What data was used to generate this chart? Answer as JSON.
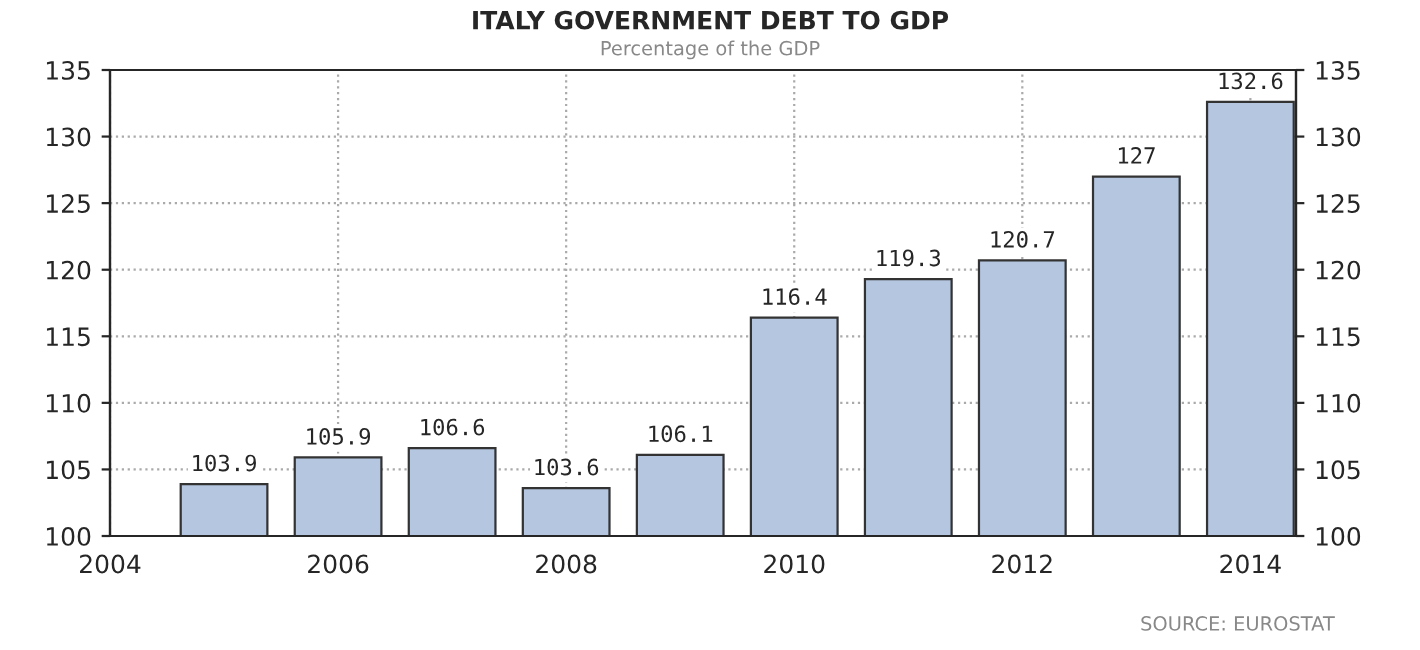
{
  "chart_data": {
    "type": "bar",
    "title": "ITALY GOVERNMENT DEBT TO GDP",
    "subtitle": "Percentage of the GDP",
    "x": [
      2005,
      2006,
      2007,
      2008,
      2009,
      2010,
      2011,
      2012,
      2013,
      2014
    ],
    "series": [
      {
        "color": "#b4c6e0",
        "values": [
          103.9,
          105.9,
          106.6,
          103.6,
          106.1,
          116.4,
          119.3,
          120.7,
          127,
          132.6
        ]
      }
    ],
    "data_labels": true,
    "xlim": [
      2004,
      2014.4
    ],
    "xticks": [
      2004,
      2006,
      2008,
      2010,
      2012,
      2014
    ],
    "ylim": [
      100,
      135
    ],
    "yticks": [
      100,
      105,
      110,
      115,
      120,
      125,
      130,
      135
    ],
    "y2lim": [
      100,
      135
    ],
    "y2ticks": [
      100,
      105,
      110,
      115,
      120,
      125,
      130,
      135
    ],
    "grid": true,
    "annotations": [
      "SOURCE: EUROSTAT"
    ]
  }
}
